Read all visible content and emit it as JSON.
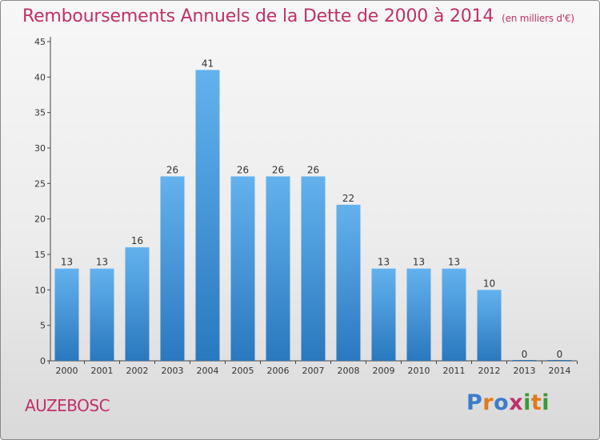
{
  "header": {
    "title": "Remboursements Annuels de la Dette de 2000 à 2014",
    "unit": "(en milliers d'€)"
  },
  "footer": {
    "commune": "AUZEBOSC",
    "logo_text": "Proxiti"
  },
  "colors": {
    "title": "#c0306a",
    "bar_top": "#63b2ee",
    "bar_bottom": "#2a78be",
    "logo": [
      "#3a7dc9",
      "#e07a1a",
      "#3a7dc9",
      "#c0306a",
      "#3a9a3a",
      "#e07a1a",
      "#3a9a3a"
    ]
  },
  "chart_data": {
    "type": "bar",
    "title": "Remboursements Annuels de la Dette de 2000 à 2014",
    "subtitle": "(en milliers d'€)",
    "categories": [
      "2000",
      "2001",
      "2002",
      "2003",
      "2004",
      "2005",
      "2006",
      "2007",
      "2008",
      "2009",
      "2010",
      "2011",
      "2012",
      "2013",
      "2014"
    ],
    "values": [
      13,
      13,
      16,
      26,
      41,
      26,
      26,
      26,
      22,
      13,
      13,
      13,
      10,
      0,
      0
    ],
    "ylim": [
      0,
      45
    ],
    "yticks": [
      0,
      5,
      10,
      15,
      20,
      25,
      30,
      35,
      40,
      45
    ],
    "grid": false,
    "data_labels": true
  }
}
